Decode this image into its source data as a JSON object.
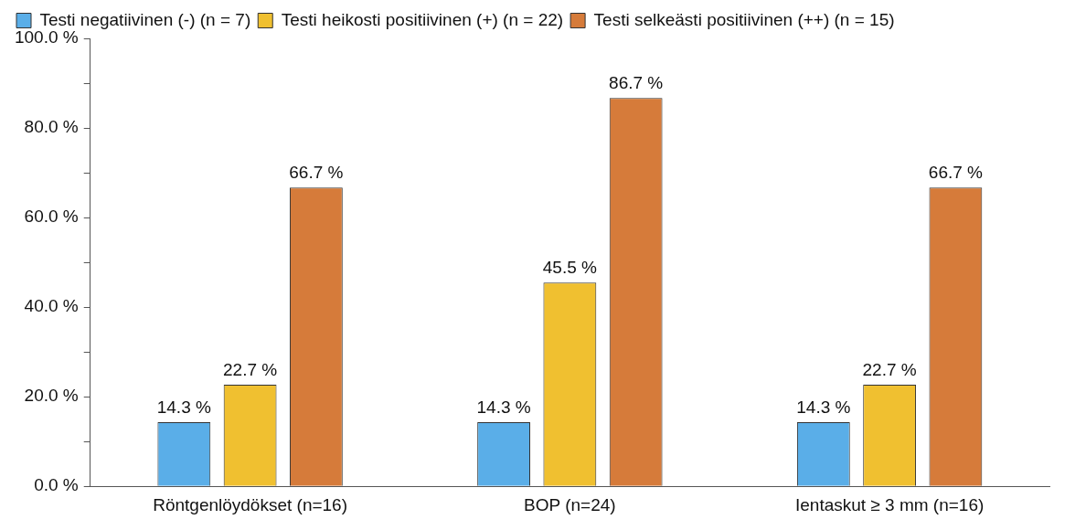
{
  "chart_data": {
    "type": "bar",
    "categories": [
      "Röntgenlöydökset (n=16)",
      "BOP (n=24)",
      "Ientaskut ≥ 3 mm (n=16)"
    ],
    "series": [
      {
        "name": "Testi negatiivinen (-) (n = 7)",
        "color": "#5aaee8",
        "values": [
          14.3,
          14.3,
          14.3
        ],
        "value_labels": [
          "14.3 %",
          "14.3 %",
          "14.3 %"
        ]
      },
      {
        "name": "Testi heikosti positiivinen (+) (n = 22)",
        "color": "#f0c030",
        "values": [
          22.7,
          45.5,
          22.7
        ],
        "value_labels": [
          "22.7 %",
          "45.5 %",
          "22.7 %"
        ]
      },
      {
        "name": "Testi selkeästi positiivinen (++) (n = 15)",
        "color": "#d67b3a",
        "values": [
          66.7,
          86.7,
          66.7
        ],
        "value_labels": [
          "66.7 %",
          "86.7 %",
          "66.7 %"
        ]
      }
    ],
    "ylim": [
      0,
      100
    ],
    "yticks": [
      {
        "value": 0,
        "label": "0.0 %"
      },
      {
        "value": 10,
        "label": null
      },
      {
        "value": 20,
        "label": "20.0 %"
      },
      {
        "value": 30,
        "label": null
      },
      {
        "value": 40,
        "label": "40.0 %"
      },
      {
        "value": 50,
        "label": null
      },
      {
        "value": 60,
        "label": "60.0 %"
      },
      {
        "value": 70,
        "label": null
      },
      {
        "value": 80,
        "label": "80.0 %"
      },
      {
        "value": 90,
        "label": null
      },
      {
        "value": 100,
        "label": "100.0 %"
      }
    ],
    "grid": false,
    "legend": "top left"
  }
}
